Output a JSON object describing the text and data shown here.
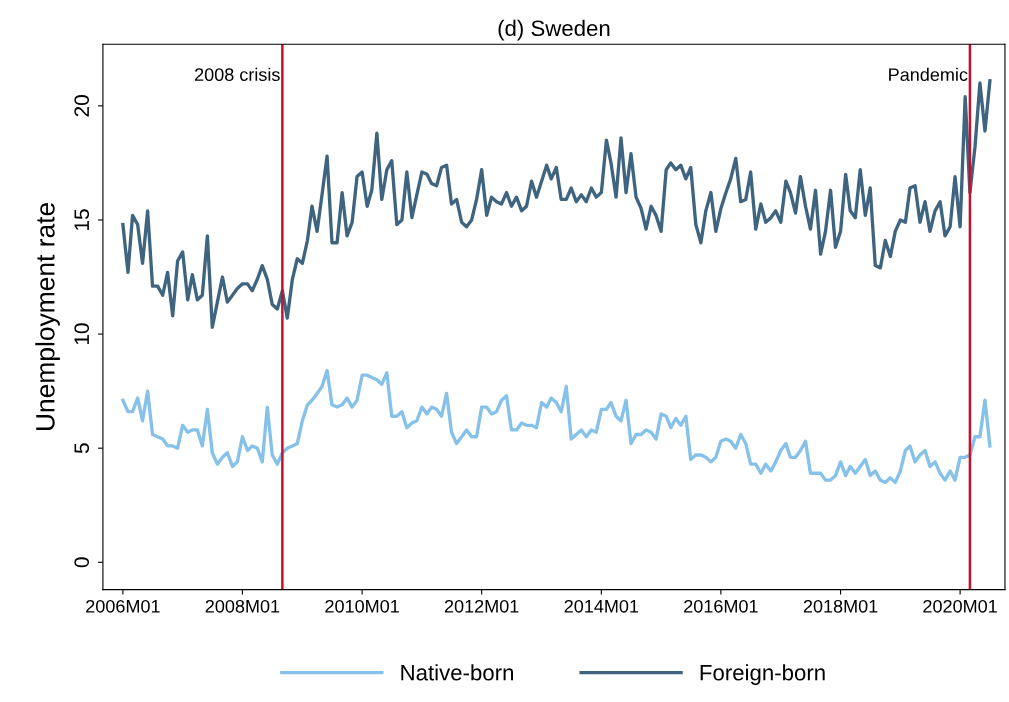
{
  "chart_data": {
    "type": "line",
    "title": "(d) Sweden",
    "ylabel": "Unemployment rate",
    "x": [
      "2006-01",
      "2006-02",
      "2006-03",
      "2006-04",
      "2006-05",
      "2006-06",
      "2006-07",
      "2006-08",
      "2006-09",
      "2006-10",
      "2006-11",
      "2006-12",
      "2007-01",
      "2007-02",
      "2007-03",
      "2007-04",
      "2007-05",
      "2007-06",
      "2007-07",
      "2007-08",
      "2007-09",
      "2007-10",
      "2007-11",
      "2007-12",
      "2008-01",
      "2008-02",
      "2008-03",
      "2008-04",
      "2008-05",
      "2008-06",
      "2008-07",
      "2008-08",
      "2008-09",
      "2008-10",
      "2008-11",
      "2008-12",
      "2009-01",
      "2009-02",
      "2009-03",
      "2009-04",
      "2009-05",
      "2009-06",
      "2009-07",
      "2009-08",
      "2009-09",
      "2009-10",
      "2009-11",
      "2009-12",
      "2010-01",
      "2010-02",
      "2010-03",
      "2010-04",
      "2010-05",
      "2010-06",
      "2010-07",
      "2010-08",
      "2010-09",
      "2010-10",
      "2010-11",
      "2010-12",
      "2011-01",
      "2011-02",
      "2011-03",
      "2011-04",
      "2011-05",
      "2011-06",
      "2011-07",
      "2011-08",
      "2011-09",
      "2011-10",
      "2011-11",
      "2011-12",
      "2012-01",
      "2012-02",
      "2012-03",
      "2012-04",
      "2012-05",
      "2012-06",
      "2012-07",
      "2012-08",
      "2012-09",
      "2012-10",
      "2012-11",
      "2012-12",
      "2013-01",
      "2013-02",
      "2013-03",
      "2013-04",
      "2013-05",
      "2013-06",
      "2013-07",
      "2013-08",
      "2013-09",
      "2013-10",
      "2013-11",
      "2013-12",
      "2014-01",
      "2014-02",
      "2014-03",
      "2014-04",
      "2014-05",
      "2014-06",
      "2014-07",
      "2014-08",
      "2014-09",
      "2014-10",
      "2014-11",
      "2014-12",
      "2015-01",
      "2015-02",
      "2015-03",
      "2015-04",
      "2015-05",
      "2015-06",
      "2015-07",
      "2015-08",
      "2015-09",
      "2015-10",
      "2015-11",
      "2015-12",
      "2016-01",
      "2016-02",
      "2016-03",
      "2016-04",
      "2016-05",
      "2016-06",
      "2016-07",
      "2016-08",
      "2016-09",
      "2016-10",
      "2016-11",
      "2016-12",
      "2017-01",
      "2017-02",
      "2017-03",
      "2017-04",
      "2017-05",
      "2017-06",
      "2017-07",
      "2017-08",
      "2017-09",
      "2017-10",
      "2017-11",
      "2017-12",
      "2018-01",
      "2018-02",
      "2018-03",
      "2018-04",
      "2018-05",
      "2018-06",
      "2018-07",
      "2018-08",
      "2018-09",
      "2018-10",
      "2018-11",
      "2018-12",
      "2019-01",
      "2019-02",
      "2019-03",
      "2019-04",
      "2019-05",
      "2019-06",
      "2019-07",
      "2019-08",
      "2019-09",
      "2019-10",
      "2019-11",
      "2019-12",
      "2020-01",
      "2020-02",
      "2020-03",
      "2020-04",
      "2020-05",
      "2020-06",
      "2020-07"
    ],
    "series": [
      {
        "name": "Native-born",
        "color": "#85c1e9",
        "values": [
          7.1,
          6.6,
          6.6,
          7.2,
          6.2,
          7.5,
          5.6,
          5.5,
          5.4,
          5.1,
          5.1,
          5.0,
          6.0,
          5.7,
          5.8,
          5.8,
          5.1,
          6.7,
          4.8,
          4.3,
          4.6,
          4.8,
          4.2,
          4.4,
          5.5,
          4.9,
          5.1,
          5.0,
          4.4,
          6.8,
          4.7,
          4.3,
          4.8,
          5.0,
          5.1,
          5.2,
          6.2,
          6.9,
          7.1,
          7.4,
          7.7,
          8.4,
          6.9,
          6.8,
          6.9,
          7.2,
          6.8,
          7.1,
          8.2,
          8.2,
          8.1,
          8.0,
          7.8,
          8.3,
          6.4,
          6.4,
          6.6,
          5.9,
          6.1,
          6.2,
          6.8,
          6.5,
          6.8,
          6.7,
          6.4,
          7.4,
          5.7,
          5.2,
          5.5,
          5.8,
          5.5,
          5.5,
          6.8,
          6.8,
          6.5,
          6.6,
          7.1,
          7.3,
          5.8,
          5.8,
          6.1,
          6.0,
          6.0,
          5.9,
          7.0,
          6.8,
          7.2,
          7.0,
          6.6,
          7.7,
          5.4,
          5.6,
          5.8,
          5.5,
          5.8,
          5.7,
          6.7,
          6.7,
          7.0,
          6.4,
          6.2,
          7.1,
          5.2,
          5.6,
          5.6,
          5.8,
          5.7,
          5.4,
          6.5,
          6.4,
          5.9,
          6.3,
          6.0,
          6.4,
          4.5,
          4.7,
          4.7,
          4.6,
          4.4,
          4.6,
          5.3,
          5.4,
          5.3,
          5.0,
          5.6,
          5.2,
          4.3,
          4.3,
          3.9,
          4.3,
          4.0,
          4.4,
          4.9,
          5.2,
          4.6,
          4.6,
          4.9,
          5.3,
          3.9,
          3.9,
          3.9,
          3.6,
          3.6,
          3.8,
          4.4,
          3.8,
          4.2,
          3.9,
          4.2,
          4.5,
          3.8,
          4.0,
          3.6,
          3.5,
          3.7,
          3.5,
          4.0,
          4.9,
          5.1,
          4.4,
          4.7,
          4.9,
          4.2,
          4.4,
          3.9,
          3.6,
          4.0,
          3.6,
          4.6,
          4.6,
          4.7,
          5.5,
          5.5,
          7.1,
          5.1
        ]
      },
      {
        "name": "Foreign-born",
        "color": "#3e6480",
        "values": [
          14.8,
          12.7,
          15.2,
          14.8,
          13.1,
          15.4,
          12.1,
          12.1,
          11.7,
          12.7,
          10.8,
          13.2,
          13.6,
          11.5,
          12.6,
          11.5,
          11.7,
          14.3,
          10.3,
          11.4,
          12.5,
          11.4,
          11.7,
          12.0,
          12.2,
          12.2,
          11.9,
          12.4,
          13.0,
          12.4,
          11.3,
          11.1,
          11.9,
          10.7,
          12.4,
          13.3,
          13.1,
          14.1,
          15.6,
          14.5,
          16.1,
          17.8,
          14.0,
          14.0,
          16.2,
          14.3,
          14.9,
          16.9,
          17.1,
          15.6,
          16.3,
          18.8,
          15.9,
          17.2,
          17.6,
          14.8,
          15.0,
          17.1,
          15.1,
          16.1,
          17.1,
          17.0,
          16.6,
          16.5,
          17.3,
          17.4,
          15.7,
          15.9,
          14.9,
          14.7,
          15.0,
          15.9,
          17.2,
          15.2,
          16.0,
          15.8,
          15.7,
          16.2,
          15.6,
          16.0,
          15.4,
          15.6,
          16.7,
          16.0,
          16.7,
          17.4,
          16.8,
          17.3,
          15.9,
          15.9,
          16.4,
          15.8,
          16.1,
          15.8,
          16.4,
          16.0,
          16.2,
          18.5,
          17.5,
          16.0,
          18.6,
          16.2,
          17.9,
          16.0,
          15.5,
          14.6,
          15.6,
          15.2,
          14.5,
          17.2,
          17.5,
          17.2,
          17.4,
          16.8,
          17.3,
          14.8,
          14.0,
          15.4,
          16.2,
          14.5,
          15.5,
          16.2,
          16.8,
          17.7,
          15.8,
          15.9,
          17.1,
          14.6,
          15.7,
          14.9,
          15.1,
          15.4,
          14.9,
          16.7,
          16.2,
          15.3,
          16.9,
          15.6,
          14.6,
          16.3,
          13.5,
          14.5,
          16.3,
          13.8,
          14.5,
          17.0,
          15.4,
          15.1,
          17.2,
          15.2,
          16.4,
          13.0,
          12.9,
          14.1,
          13.4,
          14.5,
          15.0,
          14.9,
          16.4,
          16.5,
          14.9,
          15.8,
          14.5,
          15.4,
          15.8,
          14.3,
          14.7,
          16.9,
          14.7,
          20.4,
          16.2,
          18.2,
          21.0,
          18.9,
          21.1
        ]
      }
    ],
    "xlim": [
      "2005-09",
      "2020-10"
    ],
    "xticks": [
      {
        "value": "2006-01",
        "label": "2006M01"
      },
      {
        "value": "2008-01",
        "label": "2008M01"
      },
      {
        "value": "2010-01",
        "label": "2010M01"
      },
      {
        "value": "2012-01",
        "label": "2012M01"
      },
      {
        "value": "2014-01",
        "label": "2014M01"
      },
      {
        "value": "2016-01",
        "label": "2016M01"
      },
      {
        "value": "2018-01",
        "label": "2018M01"
      },
      {
        "value": "2020-01",
        "label": "2020M01"
      }
    ],
    "ylim": [
      -1.2,
      22.7
    ],
    "yticks": [
      0,
      5,
      10,
      15,
      20
    ],
    "ref_lines": [
      {
        "axis": "x",
        "value": "2008-09",
        "label": "2008 crisis",
        "color": "#c8102e"
      },
      {
        "axis": "x",
        "value": "2020-03",
        "label": "Pandemic",
        "color": "#c8102e"
      }
    ],
    "grid": false,
    "legend": "bottom",
    "marker": "none",
    "line_style": "solid"
  }
}
